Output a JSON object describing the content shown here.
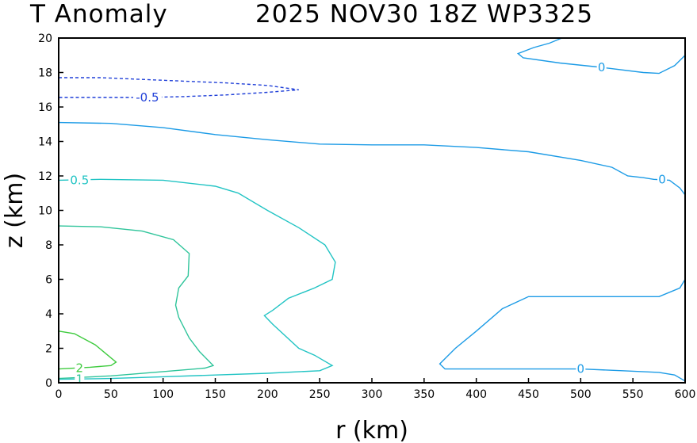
{
  "title": {
    "left": "T Anomaly",
    "right": "2025 NOV30 18Z  WP3325"
  },
  "chart_data": {
    "type": "contour",
    "title": "T Anomaly",
    "subtitle": "2025 NOV30 18Z  WP3325",
    "xlabel": "r (km)",
    "ylabel": "z (km)",
    "xlim": [
      0,
      600
    ],
    "ylim": [
      0,
      20
    ],
    "xticks": [
      0,
      50,
      100,
      150,
      200,
      250,
      300,
      350,
      400,
      450,
      500,
      550,
      600
    ],
    "yticks": [
      0,
      2,
      4,
      6,
      8,
      10,
      12,
      14,
      16,
      18,
      20
    ],
    "grid": false,
    "contours": [
      {
        "level": -0.5,
        "label": "-0.5",
        "color": "#1f3fd8",
        "dashed": true,
        "label_at": [
          85,
          16.55
        ],
        "points": [
          [
            0,
            17.7
          ],
          [
            40,
            17.7
          ],
          [
            80,
            17.6
          ],
          [
            120,
            17.5
          ],
          [
            160,
            17.4
          ],
          [
            200,
            17.25
          ],
          [
            230,
            17.0
          ],
          [
            200,
            16.85
          ],
          [
            160,
            16.7
          ],
          [
            120,
            16.6
          ],
          [
            80,
            16.55
          ],
          [
            40,
            16.55
          ],
          [
            0,
            16.55
          ]
        ]
      },
      {
        "level": 0,
        "label": "0",
        "color": "#1c9be6",
        "dashed": false,
        "label_at": [
          520,
          18.3
        ],
        "points": [
          [
            482,
            20.0
          ],
          [
            470,
            19.7
          ],
          [
            455,
            19.45
          ],
          [
            440,
            19.1
          ],
          [
            445,
            18.85
          ],
          [
            480,
            18.55
          ],
          [
            520,
            18.3
          ],
          [
            560,
            18.0
          ],
          [
            575,
            17.95
          ],
          [
            590,
            18.4
          ],
          [
            600,
            19.0
          ]
        ]
      },
      {
        "level": 0,
        "label": "0",
        "color": "#1c9be6",
        "dashed": false,
        "label_at": [
          578,
          11.8
        ],
        "points": [
          [
            0,
            15.1
          ],
          [
            50,
            15.05
          ],
          [
            100,
            14.8
          ],
          [
            150,
            14.4
          ],
          [
            200,
            14.1
          ],
          [
            250,
            13.85
          ],
          [
            300,
            13.8
          ],
          [
            350,
            13.8
          ],
          [
            400,
            13.65
          ],
          [
            450,
            13.4
          ],
          [
            500,
            12.9
          ],
          [
            530,
            12.5
          ],
          [
            545,
            12.0
          ],
          [
            560,
            11.9
          ],
          [
            570,
            11.8
          ],
          [
            585,
            11.75
          ],
          [
            595,
            11.3
          ],
          [
            600,
            10.9
          ]
        ]
      },
      {
        "level": 0,
        "label": "0",
        "color": "#1c9be6",
        "dashed": false,
        "label_at": [
          500,
          0.8
        ],
        "points": [
          [
            600,
            6.0
          ],
          [
            595,
            5.5
          ],
          [
            575,
            5.0
          ],
          [
            500,
            5.0
          ],
          [
            450,
            5.0
          ],
          [
            425,
            4.3
          ],
          [
            400,
            3.0
          ],
          [
            380,
            2.0
          ],
          [
            365,
            1.1
          ],
          [
            370,
            0.8
          ],
          [
            410,
            0.8
          ],
          [
            450,
            0.8
          ],
          [
            500,
            0.8
          ],
          [
            540,
            0.7
          ],
          [
            575,
            0.6
          ],
          [
            590,
            0.45
          ],
          [
            600,
            0.1
          ]
        ]
      },
      {
        "level": 0.5,
        "label": "0.5",
        "color": "#22c4c4",
        "dashed": false,
        "label_at": [
          20,
          11.75
        ],
        "points": [
          [
            0,
            11.75
          ],
          [
            40,
            11.8
          ],
          [
            100,
            11.75
          ],
          [
            150,
            11.4
          ],
          [
            172,
            11.0
          ],
          [
            200,
            10.0
          ],
          [
            230,
            9.0
          ],
          [
            255,
            8.0
          ],
          [
            265,
            7.0
          ],
          [
            262,
            6.0
          ],
          [
            245,
            5.5
          ],
          [
            220,
            4.9
          ],
          [
            205,
            4.2
          ],
          [
            197,
            3.9
          ],
          [
            205,
            3.4
          ],
          [
            230,
            2.0
          ],
          [
            245,
            1.6
          ],
          [
            262,
            1.0
          ],
          [
            250,
            0.7
          ],
          [
            200,
            0.55
          ],
          [
            150,
            0.45
          ],
          [
            100,
            0.35
          ],
          [
            50,
            0.25
          ],
          [
            0,
            0.2
          ]
        ]
      },
      {
        "level": 1,
        "label": "1",
        "color": "#2ec49a",
        "dashed": false,
        "label_at": [
          20,
          0.2
        ],
        "points": [
          [
            0,
            9.1
          ],
          [
            40,
            9.05
          ],
          [
            80,
            8.8
          ],
          [
            110,
            8.3
          ],
          [
            125,
            7.5
          ],
          [
            124,
            6.2
          ],
          [
            115,
            5.5
          ],
          [
            112,
            4.5
          ],
          [
            115,
            3.8
          ],
          [
            125,
            2.6
          ],
          [
            135,
            1.8
          ],
          [
            148,
            1.0
          ],
          [
            140,
            0.85
          ],
          [
            100,
            0.65
          ],
          [
            50,
            0.4
          ],
          [
            0,
            0.25
          ]
        ]
      },
      {
        "level": 2,
        "label": "2",
        "color": "#3ecb3e",
        "dashed": false,
        "label_at": [
          20,
          0.85
        ],
        "points": [
          [
            0,
            3.0
          ],
          [
            15,
            2.85
          ],
          [
            35,
            2.2
          ],
          [
            55,
            1.2
          ],
          [
            50,
            1.0
          ],
          [
            30,
            0.9
          ],
          [
            0,
            0.8
          ]
        ]
      }
    ]
  }
}
